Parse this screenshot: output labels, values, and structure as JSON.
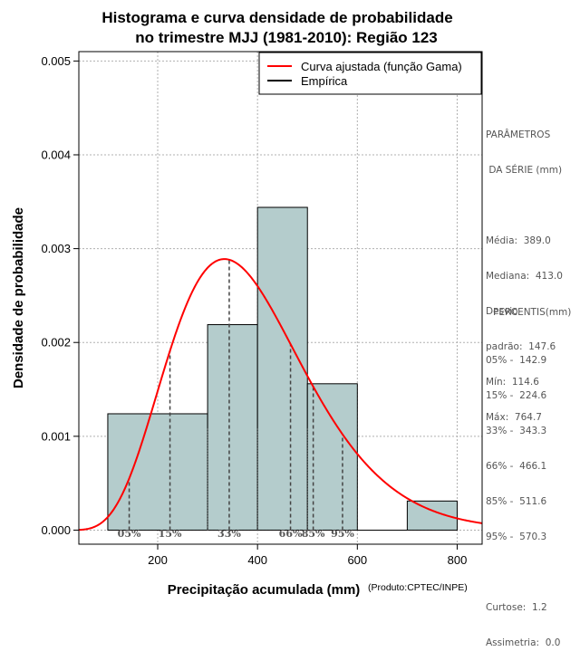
{
  "chart_data": {
    "type": "bar",
    "title_lines": [
      "Histograma e curva densidade de probabilidade",
      "no trimestre MJJ (1981-2010): Região 123"
    ],
    "xlabel": "Precipitação acumulada (mm)",
    "ylabel": "Densidade de probabilidade",
    "credit": "(Produto:CPTEC/INPE)",
    "xlim": [
      42,
      850
    ],
    "ylim": [
      -0.00015,
      0.0051
    ],
    "xticks": [
      200,
      400,
      600,
      800
    ],
    "yticks": [
      0.0,
      0.001,
      0.002,
      0.003,
      0.004,
      0.005
    ],
    "ytick_labels": [
      "0.000",
      "0.001",
      "0.002",
      "0.003",
      "0.004",
      "0.005"
    ],
    "grid": true,
    "legend_position": "top-right",
    "bins": [
      {
        "x0": 100,
        "x1": 300,
        "density": 0.00124
      },
      {
        "x0": 300,
        "x1": 400,
        "density": 0.00219
      },
      {
        "x0": 400,
        "x1": 500,
        "density": 0.00344
      },
      {
        "x0": 500,
        "x1": 600,
        "density": 0.00156
      },
      {
        "x0": 600,
        "x1": 700,
        "density": 0.0
      },
      {
        "x0": 700,
        "x1": 800,
        "density": 0.00031
      }
    ],
    "gamma_fit": {
      "shape": 7.0,
      "scale": 55.6
    },
    "series": [
      {
        "name": "Curva ajustada (função Gama)",
        "color": "#ff0000"
      },
      {
        "name": "Empírica",
        "color": "#000000"
      }
    ],
    "percentile_markers": [
      {
        "label": "05%",
        "value": 142.9
      },
      {
        "label": "15%",
        "value": 224.6
      },
      {
        "label": "33%",
        "value": 343.3
      },
      {
        "label": "66%",
        "value": 466.1
      },
      {
        "label": "85%",
        "value": 511.6
      },
      {
        "label": "95%",
        "value": 570.3
      }
    ],
    "bar_color": "#b4cccc"
  },
  "parameters": {
    "heading_line1": "PARÂMETROS",
    "heading_line2": " DA SÉRIE (mm)",
    "lines": [
      "Média:  389.0",
      "Mediana:  413.0",
      "Desvio",
      "padrão:  147.6",
      "Mín:  114.6",
      "Máx:  764.7"
    ]
  },
  "percentiles": {
    "heading": "PERCENTIS(mm)",
    "lines": [
      "05% -  142.9",
      "15% -  224.6",
      "33% -  343.3",
      "66% -  466.1",
      "85% -  511.6",
      "95% -  570.3"
    ],
    "stats": [
      "Curtose:  1.2",
      "Assimetria:  0.0"
    ]
  }
}
